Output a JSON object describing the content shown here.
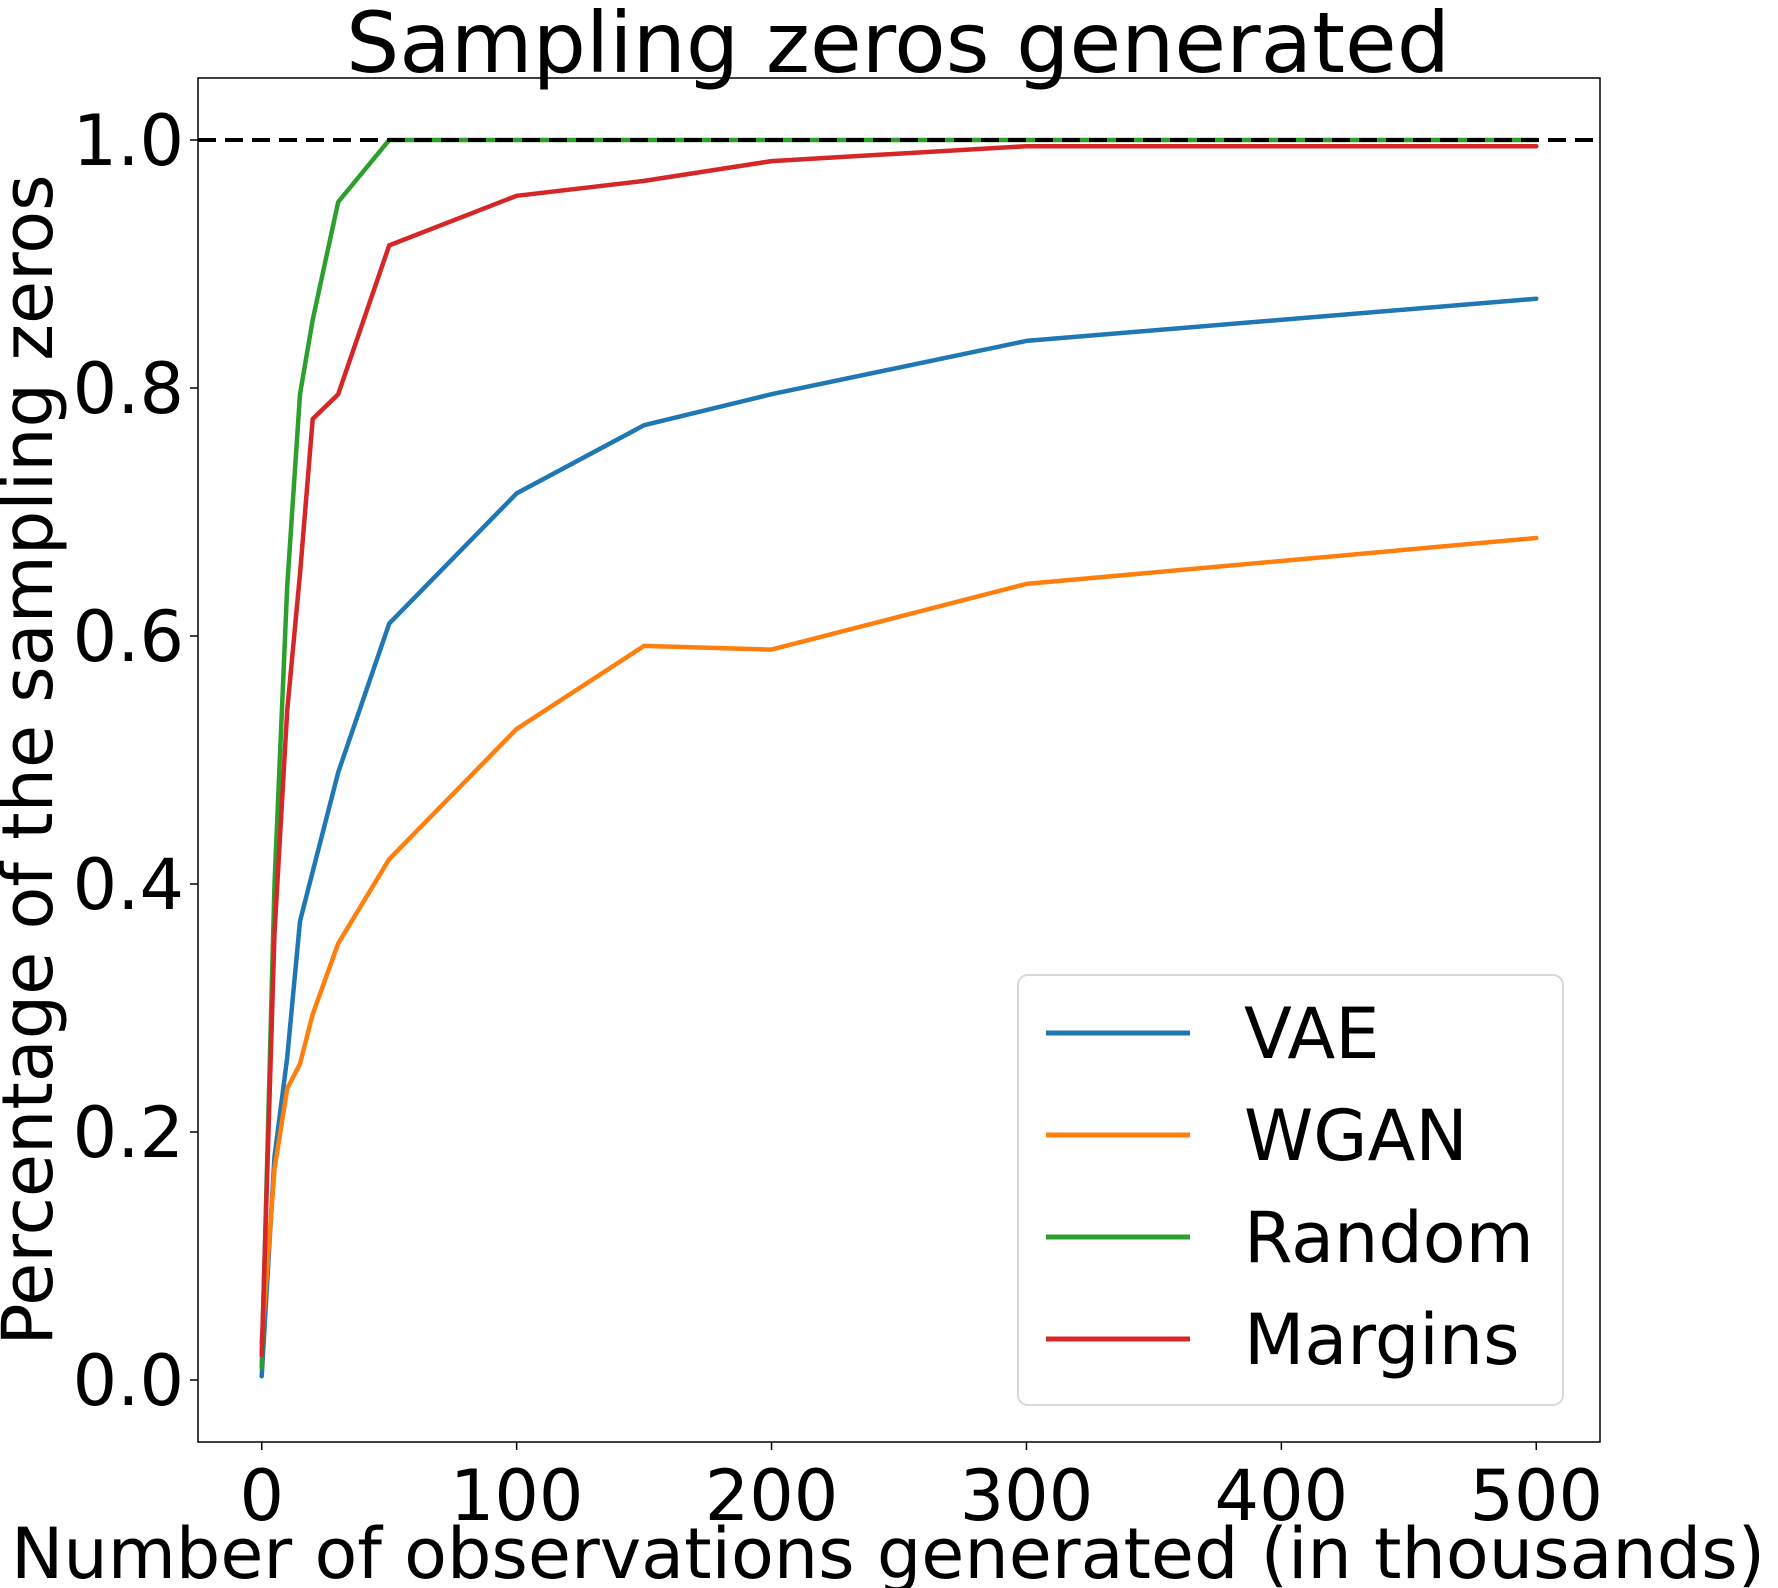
{
  "chart_data": {
    "type": "line",
    "title": "Sampling zeros generated",
    "xlabel": "Number of observations generated (in thousands)",
    "ylabel": "Percentage of the sampling zeros",
    "xlim": [
      -25,
      525
    ],
    "ylim": [
      -0.05,
      1.05
    ],
    "xticks": [
      0,
      100,
      200,
      300,
      400,
      500
    ],
    "yticks": [
      0.0,
      0.2,
      0.4,
      0.6,
      0.8,
      1.0
    ],
    "xtick_labels": [
      "0",
      "100",
      "200",
      "300",
      "400",
      "500"
    ],
    "ytick_labels": [
      "0.0",
      "0.2",
      "0.4",
      "0.6",
      "0.8",
      "1.0"
    ],
    "grid": false,
    "legend_position": "bottom-right",
    "reference_line": {
      "y": 1.0,
      "style": "dashed",
      "color": "#000000"
    },
    "series": [
      {
        "name": "VAE",
        "color": "#1f77b4",
        "x": [
          0,
          5,
          10,
          15,
          20,
          30,
          50,
          100,
          150,
          200,
          300,
          500
        ],
        "y": [
          0.003,
          0.18,
          0.26,
          0.37,
          0.41,
          0.49,
          0.61,
          0.715,
          0.77,
          0.795,
          0.838,
          0.872
        ]
      },
      {
        "name": "WGAN",
        "color": "#ff7f0e",
        "x": [
          0,
          5,
          10,
          15,
          20,
          30,
          50,
          100,
          150,
          200,
          300,
          500
        ],
        "y": [
          0.03,
          0.17,
          0.235,
          0.255,
          0.295,
          0.352,
          0.42,
          0.525,
          0.592,
          0.589,
          0.642,
          0.679
        ]
      },
      {
        "name": "Random",
        "color": "#2ca02c",
        "x": [
          0,
          5,
          10,
          15,
          20,
          30,
          50,
          100,
          150,
          200,
          300,
          500
        ],
        "y": [
          0.01,
          0.4,
          0.64,
          0.795,
          0.855,
          0.95,
          1.0,
          1.0,
          1.0,
          1.0,
          1.0,
          1.0
        ]
      },
      {
        "name": "Margins",
        "color": "#d62728",
        "x": [
          0,
          5,
          10,
          15,
          20,
          30,
          50,
          100,
          150,
          200,
          300,
          500
        ],
        "y": [
          0.02,
          0.36,
          0.54,
          0.65,
          0.775,
          0.795,
          0.915,
          0.955,
          0.967,
          0.983,
          0.995,
          0.995
        ]
      }
    ]
  }
}
